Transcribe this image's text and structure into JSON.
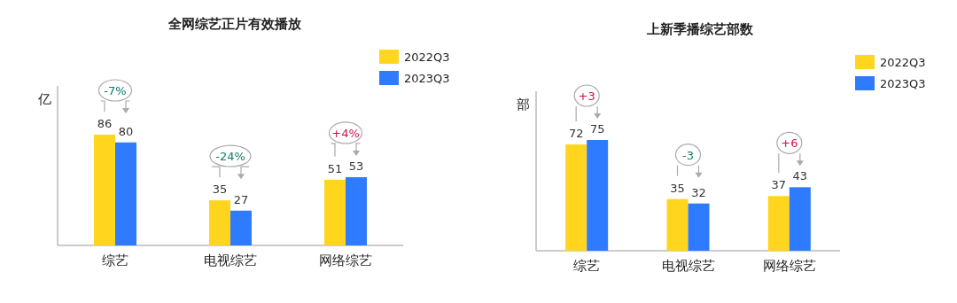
{
  "chart_data": [
    {
      "type": "bar",
      "title": "全网综艺正片有效播放",
      "ylabel": "亿",
      "categories": [
        "综艺",
        "电视综艺",
        "网络综艺"
      ],
      "series": [
        {
          "name": "2022Q3",
          "color": "#ffd51e",
          "values": [
            86,
            35,
            51
          ]
        },
        {
          "name": "2023Q3",
          "color": "#2f7bff",
          "values": [
            80,
            27,
            53
          ]
        }
      ],
      "data_labels": true,
      "legend": "top right",
      "annotations": [
        "-7%",
        "-24%",
        "+4%"
      ]
    },
    {
      "type": "bar",
      "title": "上新季播综艺部数",
      "ylabel": "部",
      "categories": [
        "综艺",
        "电视综艺",
        "网络综艺"
      ],
      "series": [
        {
          "name": "2022Q3",
          "color": "#ffd51e",
          "values": [
            72,
            35,
            37
          ]
        },
        {
          "name": "2023Q3",
          "color": "#2f7bff",
          "values": [
            75,
            32,
            43
          ]
        }
      ],
      "data_labels": true,
      "legend": "top right",
      "annotations": [
        "+3",
        "-3",
        "+6"
      ]
    }
  ]
}
